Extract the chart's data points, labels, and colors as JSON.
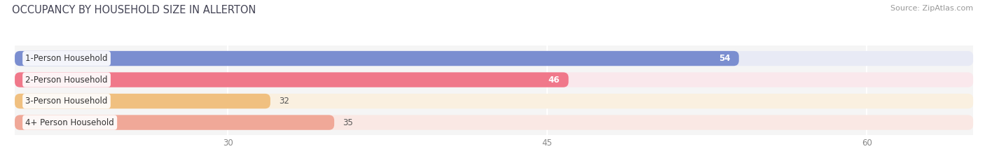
{
  "title": "OCCUPANCY BY HOUSEHOLD SIZE IN ALLERTON",
  "source": "Source: ZipAtlas.com",
  "categories": [
    "1-Person Household",
    "2-Person Household",
    "3-Person Household",
    "4+ Person Household"
  ],
  "values": [
    54,
    46,
    32,
    35
  ],
  "bar_colors": [
    "#7b8ed0",
    "#f0788a",
    "#f0c080",
    "#f0a898"
  ],
  "bar_bg_colors": [
    "#e8eaf5",
    "#fae8ec",
    "#faf0e0",
    "#fae8e4"
  ],
  "value_inside": [
    true,
    true,
    false,
    false
  ],
  "xlim_data": [
    0,
    65
  ],
  "xlim_display": [
    20,
    65
  ],
  "xticks": [
    30,
    45,
    60
  ],
  "background_color": "#ffffff",
  "plot_bg_color": "#f5f5f5",
  "title_fontsize": 10.5,
  "label_fontsize": 8.5,
  "value_fontsize": 8.5,
  "source_fontsize": 8
}
